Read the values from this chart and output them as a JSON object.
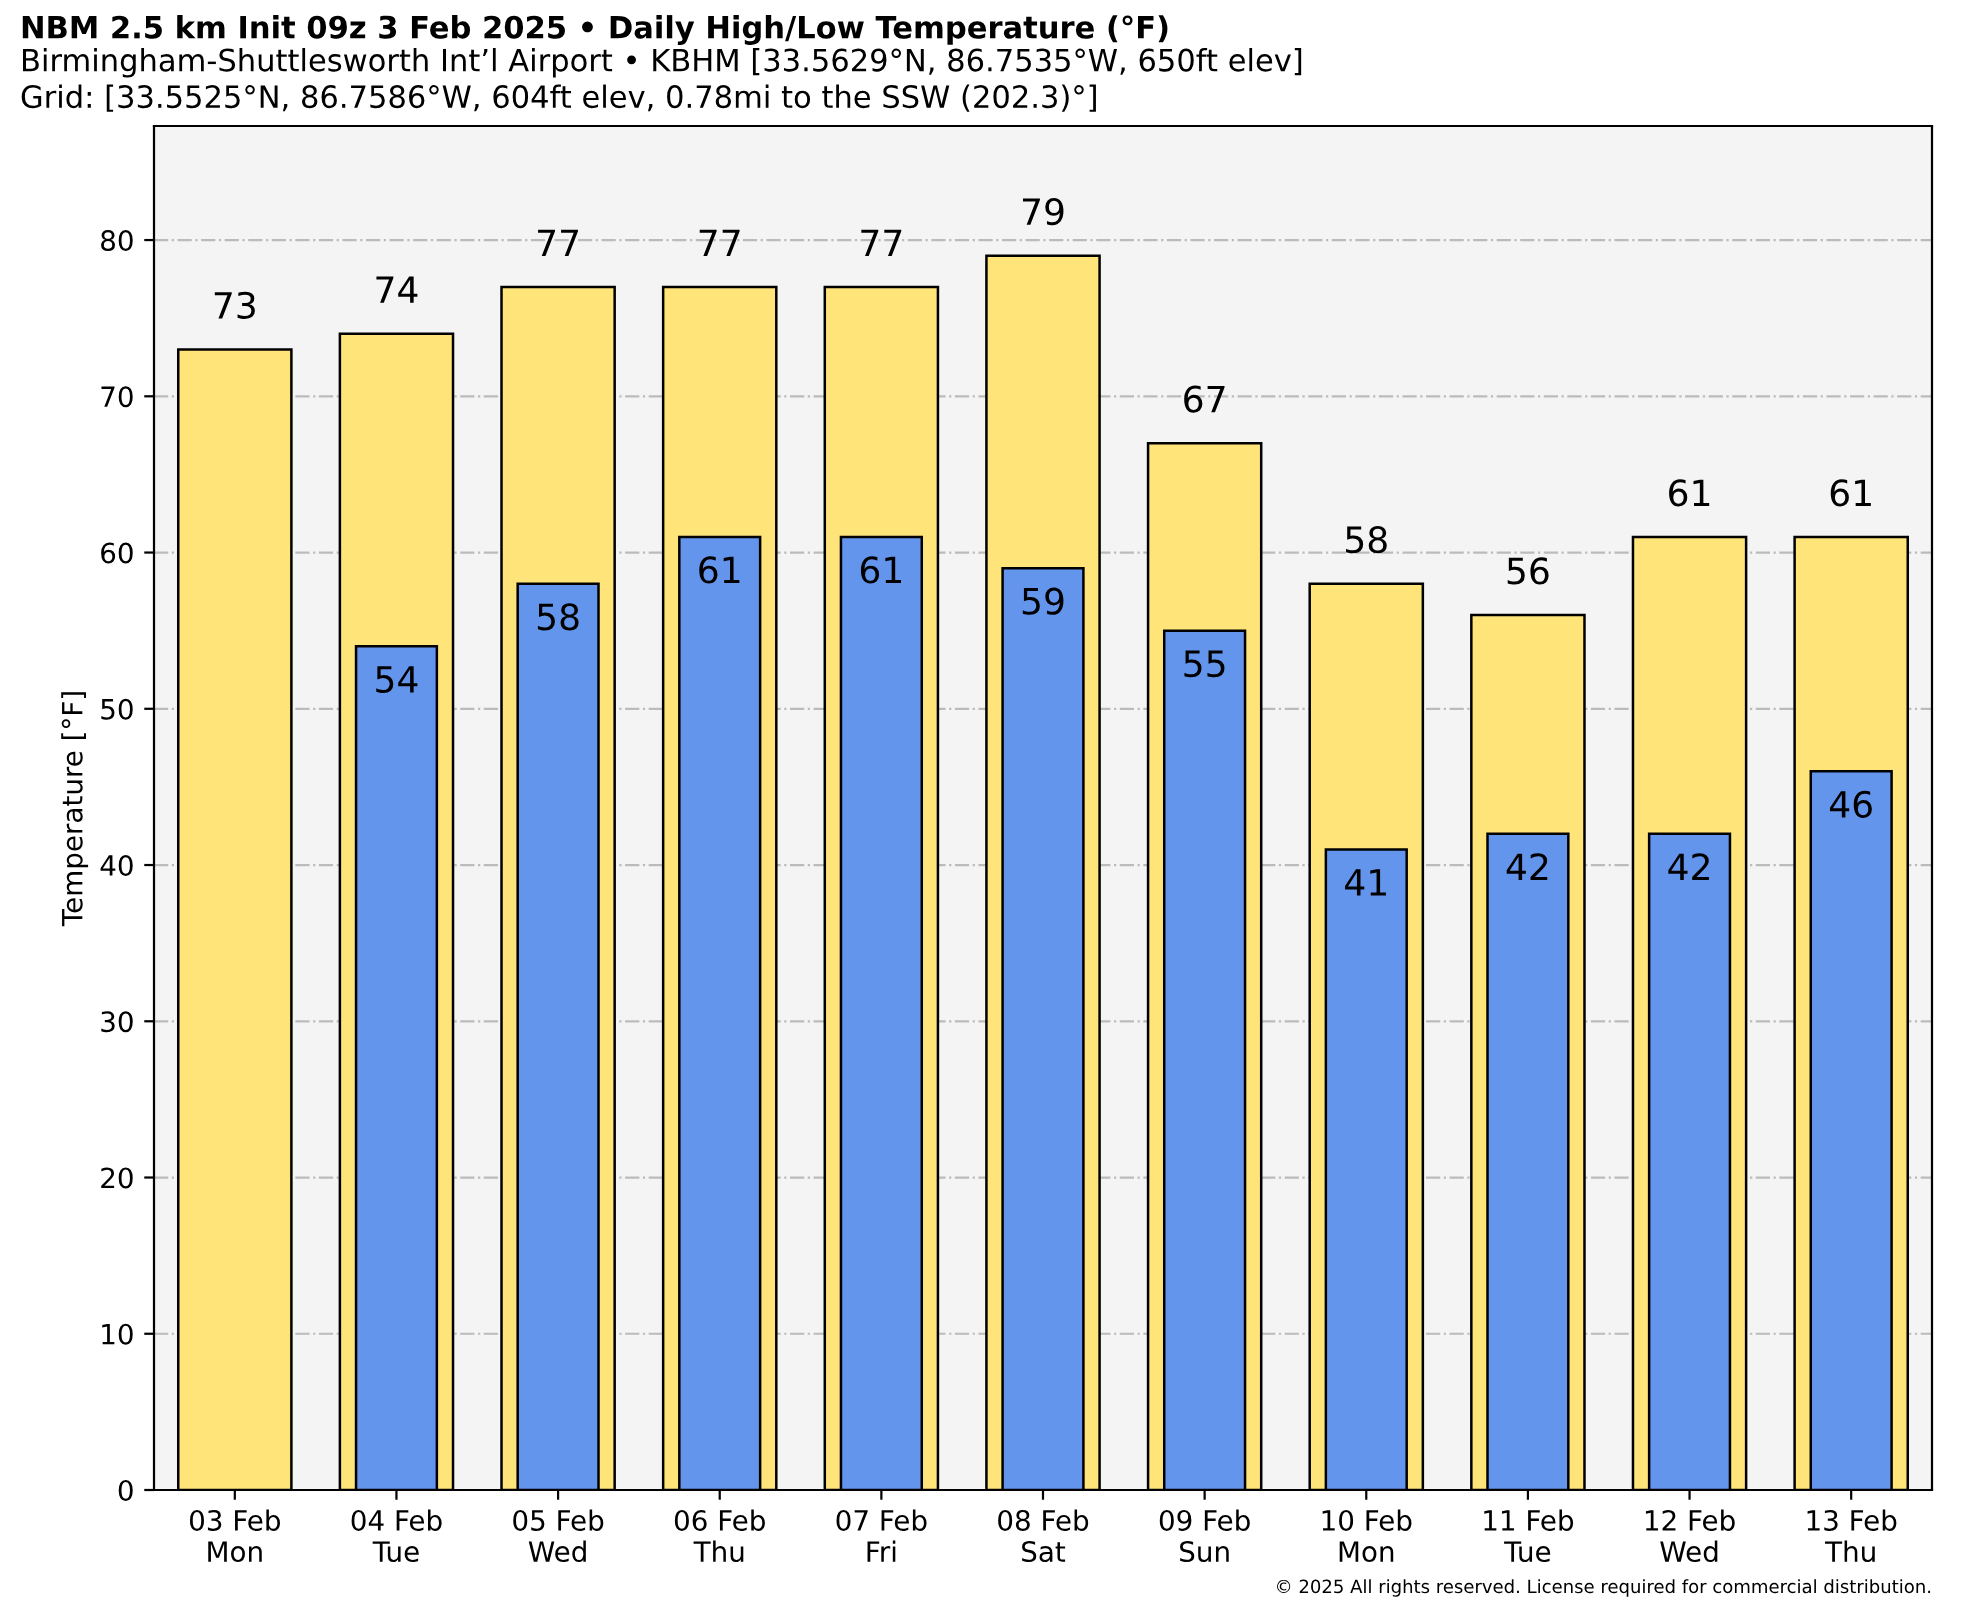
{
  "chart_data": {
    "type": "bar",
    "title": "NBM 2.5 km Init 09z 3 Feb 2025 • Daily High/Low Temperature (°F)",
    "subtitle": "Birmingham-Shuttlesworth Int’l Airport • KBHM [33.5629°N, 86.7535°W, 650ft elev]\nGrid: [33.5525°N, 86.7586°W, 604ft elev, 0.78mi to the SSW (202.3)°]",
    "ylabel": "Temperature [°F]",
    "categories": [
      "03 Feb\nMon",
      "04 Feb\nTue",
      "05 Feb\nWed",
      "06 Feb\nThu",
      "07 Feb\nFri",
      "08 Feb\nSat",
      "09 Feb\nSun",
      "10 Feb\nMon",
      "11 Feb\nTue",
      "12 Feb\nWed",
      "13 Feb\nThu"
    ],
    "series": [
      {
        "color": "#ffe47a",
        "values": [
          73,
          74,
          77,
          77,
          77,
          79,
          67,
          58,
          56,
          61,
          61
        ]
      },
      {
        "color": "#6495ed",
        "values": [
          null,
          54,
          58,
          61,
          61,
          59,
          55,
          41,
          42,
          42,
          46
        ]
      }
    ],
    "ylim": [
      0,
      87.3
    ],
    "yticks": [
      0,
      10,
      20,
      30,
      40,
      50,
      60,
      70,
      80
    ],
    "grid": "y",
    "data_labels": true,
    "legend": false,
    "annotations": [
      "© 2025 All rights reserved. License required for commercial distribution."
    ]
  }
}
